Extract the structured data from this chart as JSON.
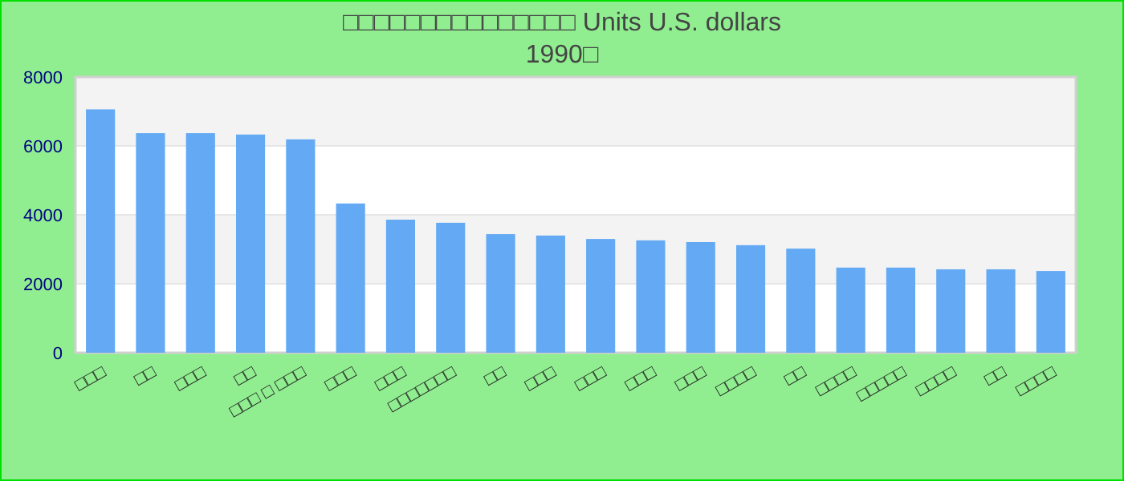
{
  "chart_data": {
    "type": "bar",
    "title": "□□□□□□□□□□□□□□□ Units U.S. dollars",
    "subtitle": "1990□",
    "categories": [
      "□□□",
      "□□",
      "□□□",
      "□□",
      "□□□ □ □□□",
      "□□□",
      "□□□",
      "□□□□□□□",
      "□□",
      "□□□",
      "□□□",
      "□□□",
      "□□□",
      "□□□□",
      "□□",
      "□□□□",
      "□□□□□",
      "□□□□",
      "□□",
      "□□□□"
    ],
    "values": [
      7060,
      6370,
      6370,
      6330,
      6190,
      4330,
      3860,
      3770,
      3440,
      3400,
      3300,
      3260,
      3210,
      3120,
      3020,
      2470,
      2470,
      2420,
      2420,
      2370
    ],
    "color": "#63a9f4",
    "ylim": [
      0,
      8000
    ],
    "yticks": [
      0,
      2000,
      4000,
      6000,
      8000
    ],
    "grid": true
  }
}
